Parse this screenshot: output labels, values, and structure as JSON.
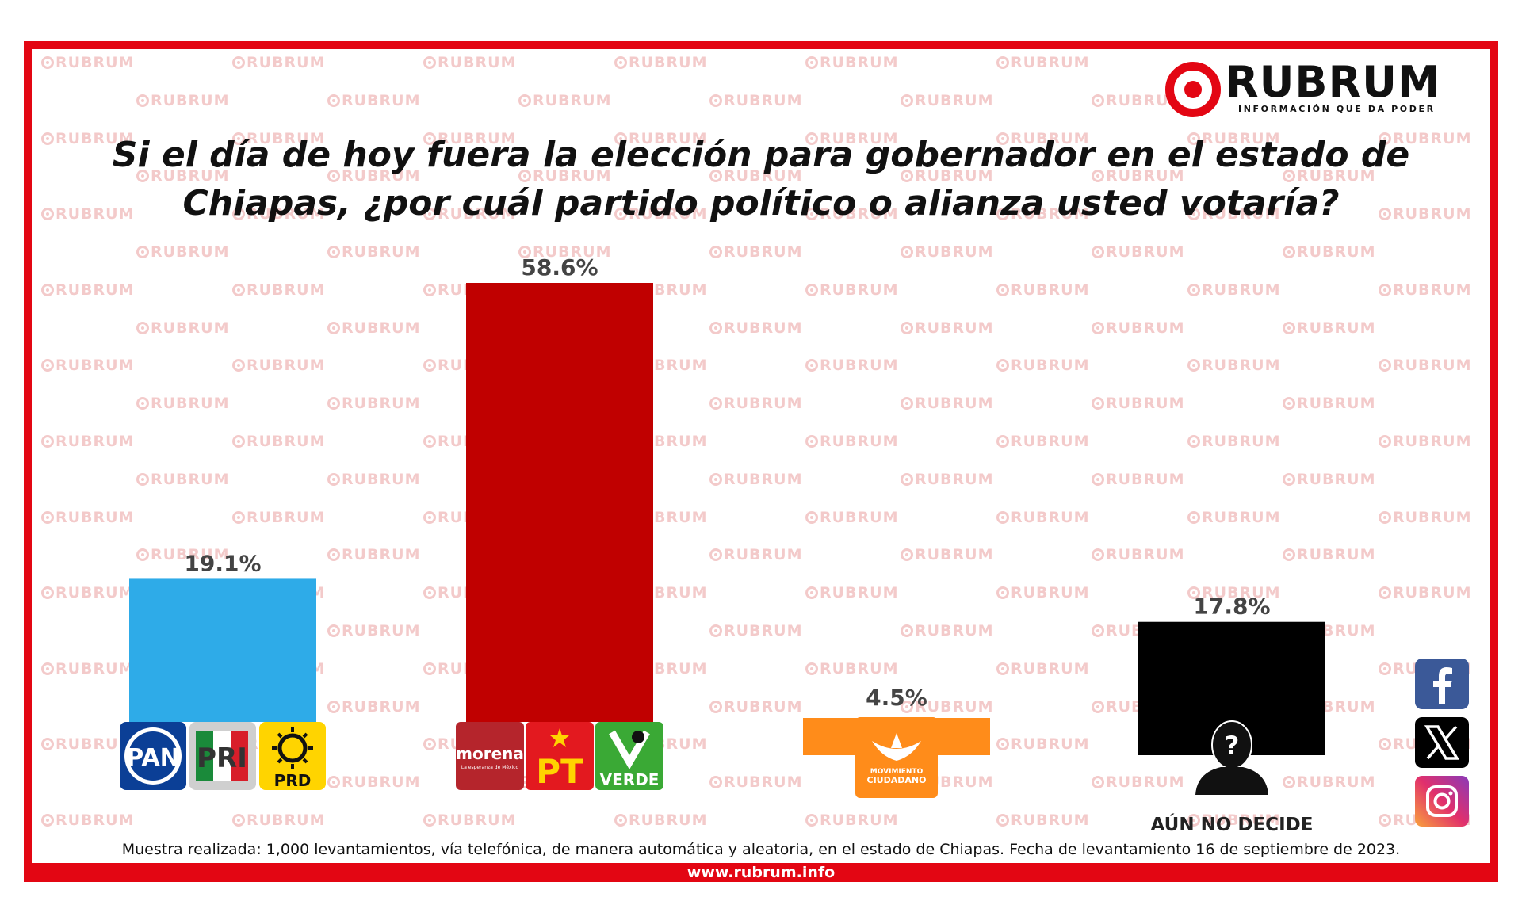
{
  "brand": {
    "watermark": "RUBRUM",
    "logo_text": "RUBRUM",
    "logo_tagline": "INFORMACIÓN QUE DA PODER",
    "url": "www.rubrum.info",
    "color_red": "#e30613"
  },
  "title_lines": [
    "Si el día de hoy fuera la elección para gobernador en el estado de",
    "Chiapas, ¿por cuál  partido político o alianza usted votaría?"
  ],
  "chart_data": {
    "type": "bar",
    "title": "Si el día de hoy fuera la elección para gobernador en el estado de Chiapas, ¿por cuál  partido político o alianza usted votaría?",
    "categories": [
      "PAN-PRI-PRD",
      "MORENA-PT-VERDE",
      "MOVIMIENTO CIUDADANO",
      "AÚN NO DECIDE"
    ],
    "values": [
      19.1,
      58.6,
      4.5,
      17.8
    ],
    "value_labels": [
      "19.1%",
      "58.6%",
      "4.5%",
      "17.8%"
    ],
    "colors": [
      "#2eabe8",
      "#c00000",
      "#ff8c1a",
      "#000000"
    ],
    "printed_category_labels": [
      "",
      "",
      "",
      "AÚN NO DECIDE"
    ],
    "unit": "%",
    "ylim": [
      0,
      58.6
    ],
    "grid": false,
    "legend": "none"
  },
  "party_logos": {
    "pan": "PAN",
    "pri": "PRI",
    "prd": "PRD",
    "morena": "morena",
    "morena_sub": "La esperanza de México",
    "pt": "PT",
    "verde": "VERDE",
    "mc_line1": "MOVIMIENTO",
    "mc_line2": "CIUDADANO",
    "undecided_icon": "question-person-icon"
  },
  "footnote": "Muestra realizada: 1,000 levantamientos, vía telefónica, de manera automática y aleatoria, en el estado de Chiapas. Fecha de levantamiento 16 de septiembre de 2023.",
  "social_icons": [
    "facebook-icon",
    "x-icon",
    "instagram-icon"
  ]
}
